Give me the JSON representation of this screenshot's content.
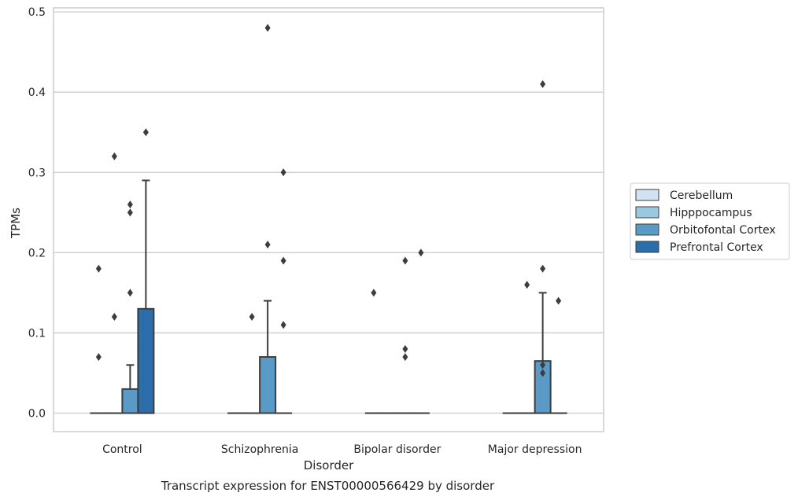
{
  "chart_data": {
    "type": "box",
    "title": "Transcript expression for ENST00000566429 by disorder",
    "xlabel": "Disorder",
    "ylabel": "TPMs",
    "ylim": [
      -0.023,
      0.505
    ],
    "yticks": [
      0.0,
      0.1,
      0.2,
      0.3,
      0.4,
      0.5
    ],
    "ytick_labels": [
      "0.0",
      "0.1",
      "0.2",
      "0.3",
      "0.4",
      "0.5"
    ],
    "grid": true,
    "legend_position": "right",
    "categories": [
      "Control",
      "Schizophrenia",
      "Bipolar disorder",
      "Major depression"
    ],
    "series": [
      {
        "name": "Cerebellum",
        "color": "#d1e2f2",
        "boxes": [
          {
            "q1": 0,
            "median": 0,
            "q3": 0,
            "whisker_low": 0,
            "whisker_high": 0,
            "outliers": [
              0.07,
              0.18
            ]
          },
          {
            "q1": 0,
            "median": 0,
            "q3": 0,
            "whisker_low": 0,
            "whisker_high": 0,
            "outliers": []
          },
          {
            "q1": 0,
            "median": 0,
            "q3": 0,
            "whisker_low": 0,
            "whisker_high": 0,
            "outliers": [
              0.15
            ]
          },
          {
            "q1": 0,
            "median": 0,
            "q3": 0,
            "whisker_low": 0,
            "whisker_high": 0,
            "outliers": []
          }
        ]
      },
      {
        "name": "Hipppocampus",
        "color": "#9ac8e0",
        "boxes": [
          {
            "q1": 0,
            "median": 0,
            "q3": 0,
            "whisker_low": 0,
            "whisker_high": 0,
            "outliers": [
              0.12,
              0.32
            ]
          },
          {
            "q1": 0,
            "median": 0,
            "q3": 0,
            "whisker_low": 0,
            "whisker_high": 0,
            "outliers": [
              0.12
            ]
          },
          {
            "q1": 0,
            "median": 0,
            "q3": 0,
            "whisker_low": 0,
            "whisker_high": 0,
            "outliers": []
          },
          {
            "q1": 0,
            "median": 0,
            "q3": 0,
            "whisker_low": 0,
            "whisker_high": 0,
            "outliers": [
              0.16
            ]
          }
        ]
      },
      {
        "name": "Orbitofontal Cortex",
        "color": "#5a9ac6",
        "boxes": [
          {
            "q1": 0,
            "median": 0,
            "q3": 0.03,
            "whisker_low": 0,
            "whisker_high": 0.06,
            "outliers": [
              0.15,
              0.25,
              0.26
            ]
          },
          {
            "q1": 0,
            "median": 0,
            "q3": 0.07,
            "whisker_low": 0,
            "whisker_high": 0.14,
            "outliers": [
              0.21,
              0.48
            ]
          },
          {
            "q1": 0,
            "median": 0,
            "q3": 0,
            "whisker_low": 0,
            "whisker_high": 0,
            "outliers": [
              0.07,
              0.08,
              0.19
            ]
          },
          {
            "q1": 0,
            "median": 0,
            "q3": 0.065,
            "whisker_low": 0,
            "whisker_high": 0.15,
            "outliers": [
              0.05,
              0.06,
              0.18,
              0.41
            ]
          }
        ]
      },
      {
        "name": "Prefrontal Cortex",
        "color": "#2c6dab",
        "boxes": [
          {
            "q1": 0,
            "median": 0,
            "q3": 0.13,
            "whisker_low": 0,
            "whisker_high": 0.29,
            "outliers": [
              0.35
            ]
          },
          {
            "q1": 0,
            "median": 0,
            "q3": 0,
            "whisker_low": 0,
            "whisker_high": 0,
            "outliers": [
              0.11,
              0.19,
              0.3
            ]
          },
          {
            "q1": 0,
            "median": 0,
            "q3": 0,
            "whisker_low": 0,
            "whisker_high": 0,
            "outliers": [
              0.2
            ]
          },
          {
            "q1": 0,
            "median": 0,
            "q3": 0,
            "whisker_low": 0,
            "whisker_high": 0,
            "outliers": [
              0.14
            ]
          }
        ]
      }
    ]
  }
}
